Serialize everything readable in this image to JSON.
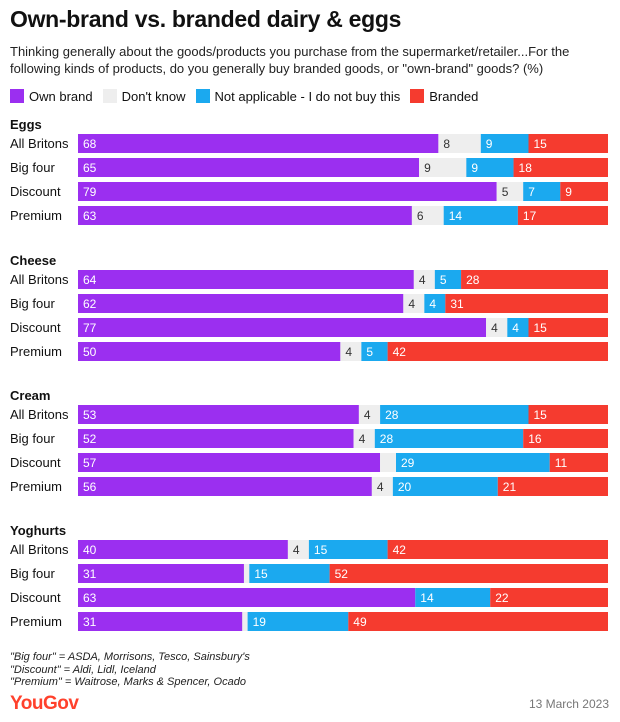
{
  "title": "Own-brand vs. branded dairy & eggs",
  "subtitle": "Thinking generally about the goods/products you purchase from the supermarket/retailer...For the following kinds of products, do you generally buy branded goods, or \"own-brand\" goods? (%)",
  "legend": [
    {
      "label": "Own brand",
      "color": "#9b2ff0"
    },
    {
      "label": "Don't know",
      "color": "#eeeeee"
    },
    {
      "label": "Not applicable - I do not buy this",
      "color": "#1ba9ef"
    },
    {
      "label": "Branded",
      "color": "#f53b2f"
    }
  ],
  "chart_data": {
    "type": "bar",
    "orientation": "horizontal",
    "stacked": true,
    "series_names": [
      "Own brand",
      "Don't know",
      "Not applicable - I do not buy this",
      "Branded"
    ],
    "colors": [
      "#9b2ff0",
      "#eeeeee",
      "#1ba9ef",
      "#f53b2f"
    ],
    "groups": [
      {
        "name": "Eggs",
        "rows": [
          {
            "label": "All Britons",
            "values": [
              68,
              8,
              9,
              15
            ]
          },
          {
            "label": "Big four",
            "values": [
              65,
              9,
              9,
              18
            ]
          },
          {
            "label": "Discount",
            "values": [
              79,
              5,
              7,
              9
            ]
          },
          {
            "label": "Premium",
            "values": [
              63,
              6,
              14,
              17
            ]
          }
        ]
      },
      {
        "name": "Cheese",
        "rows": [
          {
            "label": "All Britons",
            "values": [
              64,
              4,
              5,
              28
            ]
          },
          {
            "label": "Big four",
            "values": [
              62,
              4,
              4,
              31
            ]
          },
          {
            "label": "Discount",
            "values": [
              77,
              4,
              4,
              15
            ]
          },
          {
            "label": "Premium",
            "values": [
              50,
              4,
              5,
              42
            ]
          }
        ]
      },
      {
        "name": "Cream",
        "rows": [
          {
            "label": "All Britons",
            "values": [
              53,
              4,
              28,
              15
            ]
          },
          {
            "label": "Big four",
            "values": [
              52,
              4,
              28,
              16
            ]
          },
          {
            "label": "Discount",
            "values": [
              57,
              3,
              29,
              11
            ]
          },
          {
            "label": "Premium",
            "values": [
              56,
              4,
              20,
              21
            ]
          }
        ]
      },
      {
        "name": "Yoghurts",
        "rows": [
          {
            "label": "All Britons",
            "values": [
              40,
              4,
              15,
              42
            ]
          },
          {
            "label": "Big four",
            "values": [
              31,
              1,
              15,
              52
            ]
          },
          {
            "label": "Discount",
            "values": [
              63,
              0,
              14,
              22
            ]
          },
          {
            "label": "Premium",
            "values": [
              31,
              1,
              19,
              49
            ]
          }
        ]
      }
    ],
    "hidden_labels": [
      [
        3,
        1,
        1
      ],
      [
        3,
        2,
        1
      ],
      [
        3,
        3,
        1
      ],
      [
        2,
        2,
        1
      ]
    ]
  },
  "notes": [
    "\"Big four\" = ASDA, Morrisons, Tesco, Sainsbury's",
    "\"Discount\" = Aldi, Lidl, Iceland",
    "\"Premium\" = Waitrose, Marks & Spencer, Ocado"
  ],
  "logo": "YouGov",
  "date": "13 March 2023"
}
